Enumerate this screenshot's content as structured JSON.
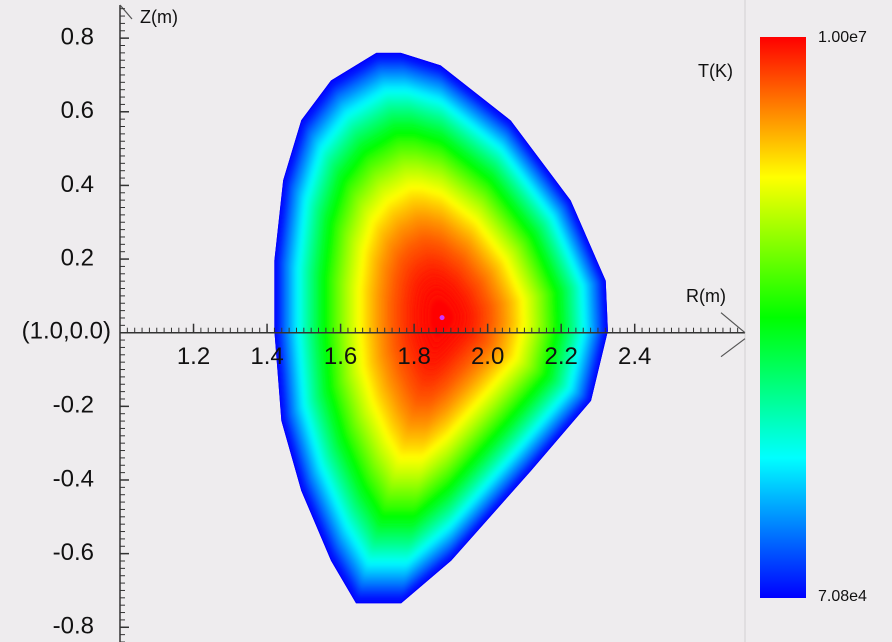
{
  "chart_data": {
    "type": "contour",
    "xlabel": "R(m)",
    "ylabel": "Z(m)",
    "origin_label": "(1.0,0.0)",
    "xlim": [
      1.0,
      2.7
    ],
    "ylim": [
      -0.84,
      0.89
    ],
    "xticks": [
      1.2,
      1.4,
      1.6,
      1.8,
      {
        "value": 2.0,
        "label": "2.0"
      },
      2.2,
      2.4
    ],
    "yticks": [
      0.8,
      0.6,
      0.4,
      0.2,
      -0.2,
      -0.4,
      -0.6,
      -0.8
    ],
    "boundary": {
      "R": [
        1.697,
        1.574,
        1.493,
        1.444,
        1.42,
        1.42,
        1.439,
        1.493,
        1.574,
        1.642,
        1.765,
        1.901,
        2.118,
        2.281,
        2.327,
        2.321,
        2.226,
        2.063,
        1.872,
        1.764
      ],
      "Z": [
        0.76,
        0.685,
        0.577,
        0.414,
        0.196,
        0.005,
        -0.239,
        -0.429,
        -0.619,
        -0.735,
        -0.735,
        -0.619,
        -0.375,
        -0.185,
        0.005,
        0.141,
        0.359,
        0.576,
        0.726,
        0.76
      ]
    },
    "axis_point": {
      "R": 1.876,
      "Z": 0.041,
      "color": "#cc33ff"
    },
    "colorbar": {
      "title": "T(K)",
      "min": {
        "value": 70800,
        "label": "7.08e4"
      },
      "max": {
        "value": 10000000,
        "label": "1.00e7"
      },
      "colors": [
        "#0000ff",
        "#00ffff",
        "#00ff00",
        "#ffff00",
        "#ff0000"
      ]
    }
  }
}
